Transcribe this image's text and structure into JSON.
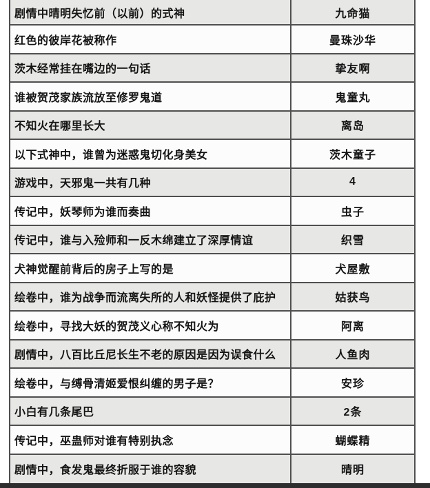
{
  "table": {
    "description": "quiz-question-answer-table",
    "columns": [
      "question",
      "answer"
    ],
    "rows": [
      {
        "question": "剧情中晴明失忆前（以前）的式神",
        "answer": "九命猫"
      },
      {
        "question": "红色的彼岸花被称作",
        "answer": "曼珠沙华"
      },
      {
        "question": "茨木经常挂在嘴边的一句话",
        "answer": "挚友啊"
      },
      {
        "question": "谁被贺茂家族流放至修罗鬼道",
        "answer": "鬼童丸"
      },
      {
        "question": "不知火在哪里长大",
        "answer": "离岛"
      },
      {
        "question": "以下式神中，谁曾为迷惑鬼切化身美女",
        "answer": "茨木童子"
      },
      {
        "question": "游戏中，天邪鬼一共有几种",
        "answer": "4"
      },
      {
        "question": "传记中，妖琴师为谁而奏曲",
        "answer": "虫子"
      },
      {
        "question": "传记中，谁与入殓师和一反木绵建立了深厚情谊",
        "answer": "织雪"
      },
      {
        "question": "犬神觉醒前背后的房子上写的是",
        "answer": "犬屋敷"
      },
      {
        "question": "绘卷中，谁为战争而流离失所的人和妖怪提供了庇护",
        "answer": "姑获鸟"
      },
      {
        "question": "绘卷中，寻找大妖的贺茂义心称不知火为",
        "answer": "阿离"
      },
      {
        "question": "剧情中，八百比丘尼长生不老的原因是因为误食什么",
        "answer": "人鱼肉"
      },
      {
        "question": "绘卷中，与缚骨清姬爱恨纠缠的男子是？",
        "answer": "安珍"
      },
      {
        "question": "小白有几条尾巴",
        "answer": "2条"
      },
      {
        "question": "传记中，巫蛊师对谁有特别执念",
        "answer": "蝴蝶精"
      },
      {
        "question": "剧情中，食发鬼最终折服于谁的容貌",
        "answer": "晴明"
      }
    ]
  },
  "colors": {
    "row_shaded_bg": "#e7e7e5",
    "row_plain_bg": "#fcfcfc",
    "grid_border": "#4f4f4f",
    "text": "#141414",
    "bottom_edge_bar": "#2e2e2e"
  }
}
